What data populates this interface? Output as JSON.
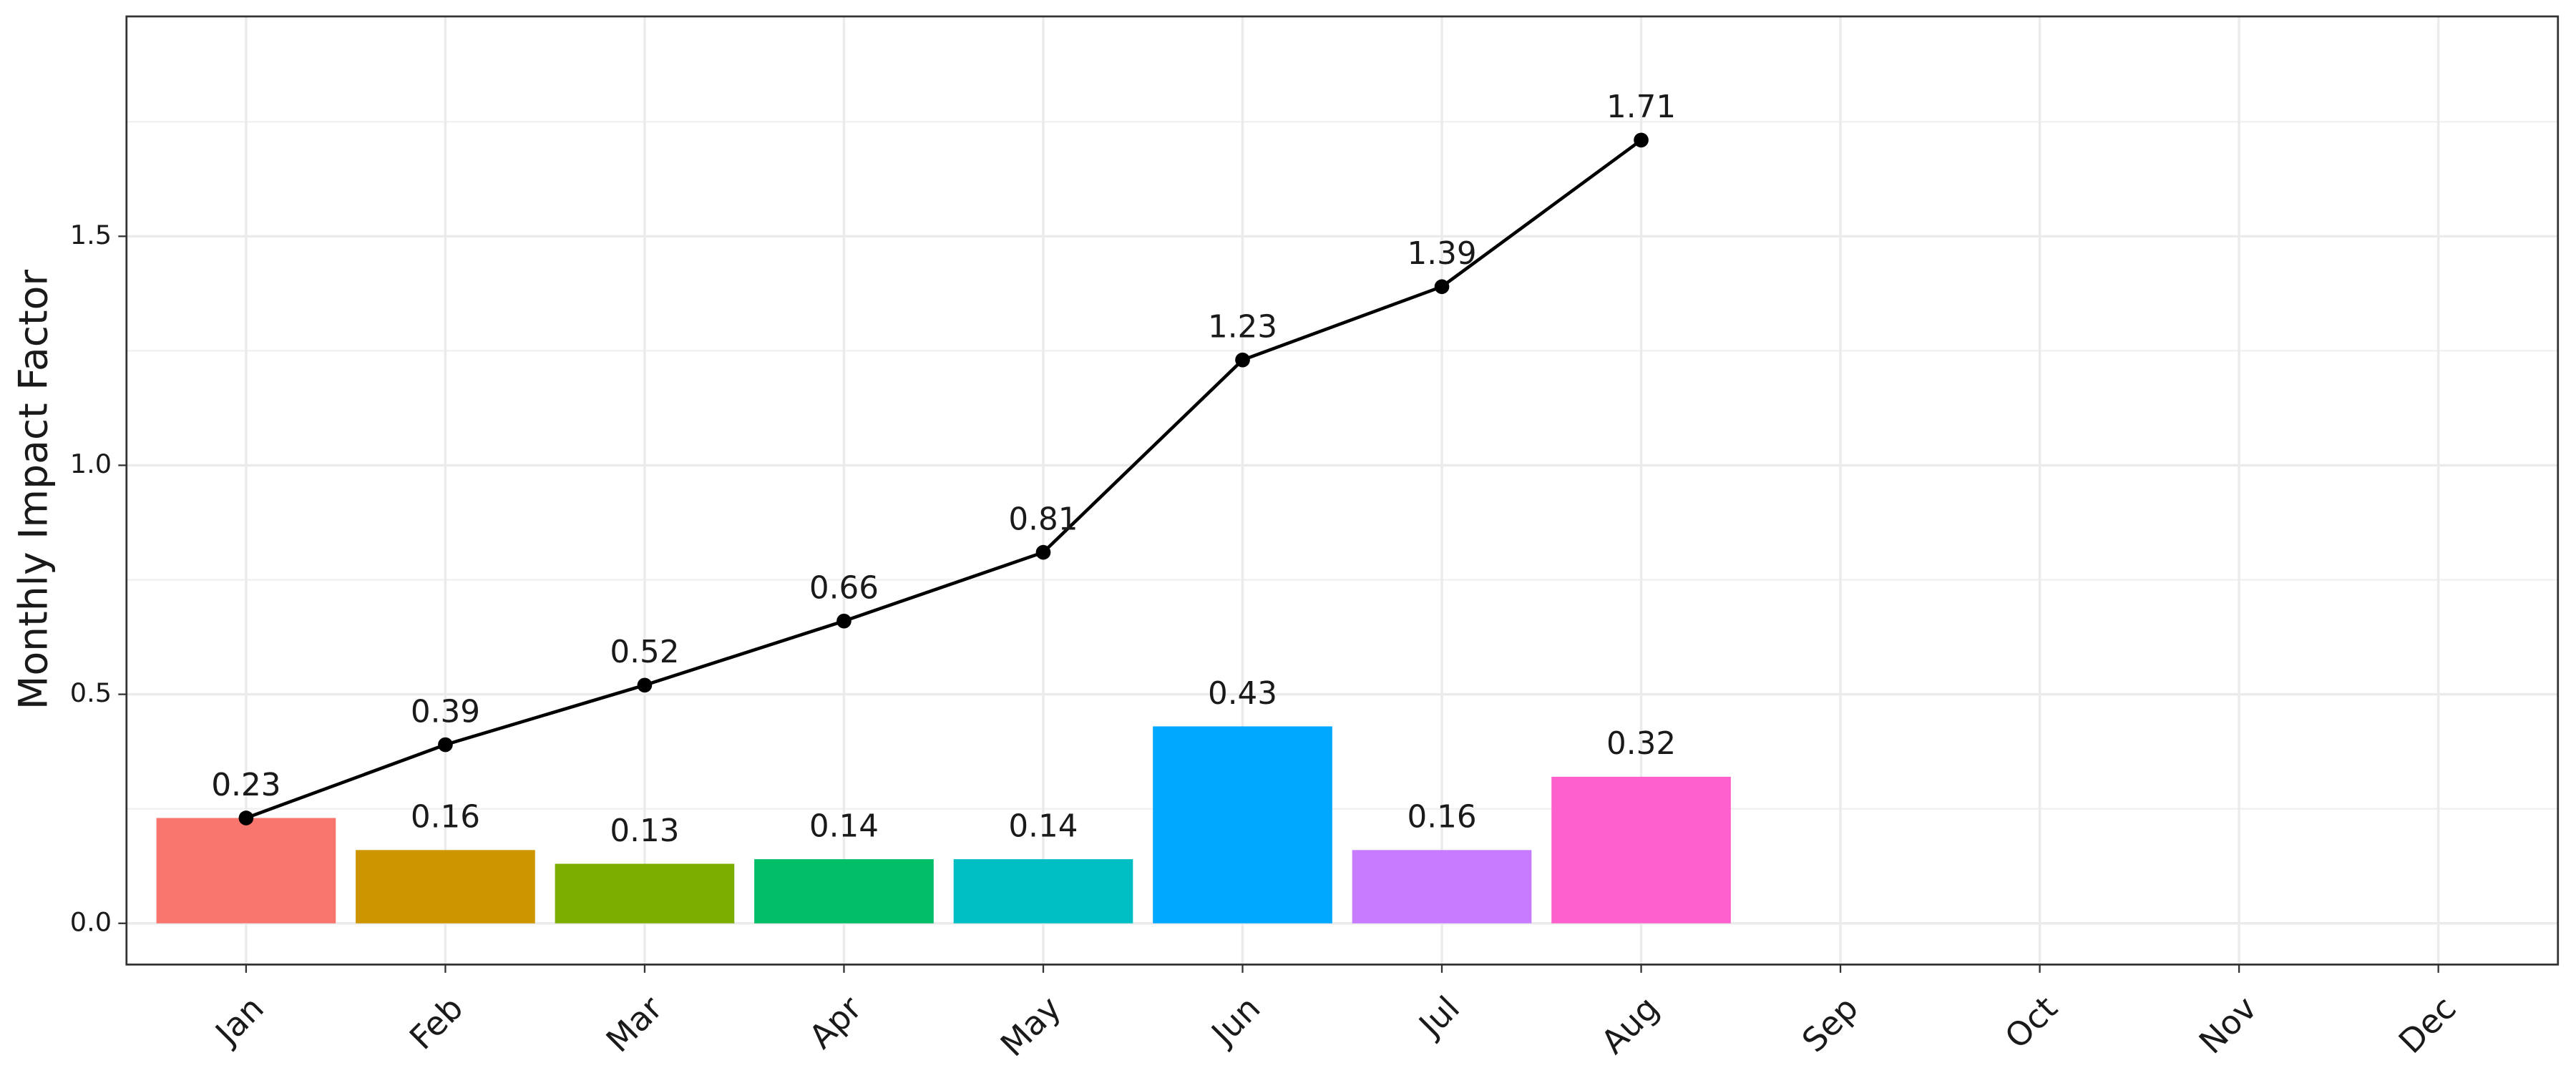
{
  "chart_data": {
    "type": "bar",
    "y_label": "Monthly Impact Factor",
    "categories": [
      "Jan",
      "Feb",
      "Mar",
      "Apr",
      "May",
      "Jun",
      "Jul",
      "Aug",
      "Sep",
      "Oct",
      "Nov",
      "Dec"
    ],
    "series": [
      {
        "type": "bar",
        "colors": [
          "#F8766D",
          "#CD9600",
          "#7CAE00",
          "#00BE67",
          "#00BFC4",
          "#00A9FF",
          "#C77CFF",
          "#FF61CC",
          null,
          null,
          null,
          null
        ],
        "values": [
          0.23,
          0.16,
          0.13,
          0.14,
          0.14,
          0.43,
          0.16,
          0.32,
          null,
          null,
          null,
          null
        ]
      },
      {
        "type": "line",
        "color": "#000000",
        "values": [
          0.23,
          0.39,
          0.52,
          0.66,
          0.81,
          1.23,
          1.39,
          1.71,
          null,
          null,
          null,
          null
        ]
      }
    ],
    "ylim": [
      -0.09,
      1.98
    ],
    "yticks": [
      {
        "value": 0,
        "label": "0.0"
      },
      0.5,
      {
        "value": 1,
        "label": "1.0"
      },
      1.5
    ],
    "y_minor_grid": [
      0.25,
      0.75,
      1.25,
      1.75
    ],
    "grid": true
  }
}
